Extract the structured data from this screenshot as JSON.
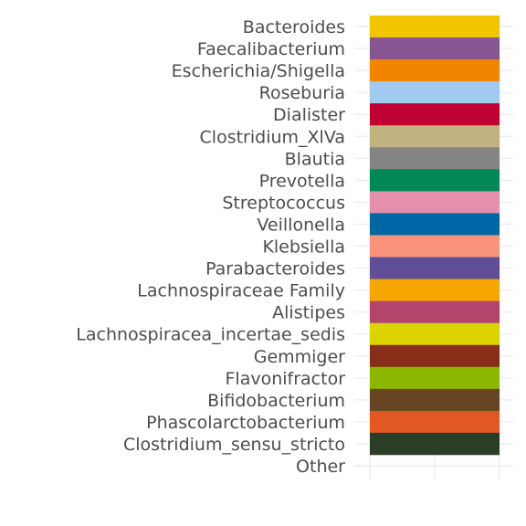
{
  "chart_data": {
    "type": "bar",
    "title": "",
    "xlabel": "",
    "ylabel": "",
    "grid": true,
    "categories": [
      "Bacteroides",
      "Faecalibacterium",
      "Escherichia/Shigella",
      "Roseburia",
      "Dialister",
      "Clostridium_XlVa",
      "Blautia",
      "Prevotella",
      "Streptococcus",
      "Veillonella",
      "Klebsiella",
      "Parabacteroides",
      "Lachnospiraceae Family",
      "Alistipes",
      "Lachnospiracea_incertae_sedis",
      "Gemmiger",
      "Flavonifractor",
      "Bifidobacterium",
      "Phascolarctobacterium",
      "Clostridium_sensu_stricto",
      "Other"
    ],
    "colors": [
      "#F2C500",
      "#875692",
      "#F38400",
      "#A1CAF1",
      "#BE0032",
      "#C2B280",
      "#848482",
      "#008856",
      "#E68FAC",
      "#0067A5",
      "#F99379",
      "#604E97",
      "#F6A600",
      "#B3446C",
      "#DCD300",
      "#882D17",
      "#8DB600",
      "#654522",
      "#E25822",
      "#2B3D26",
      null
    ],
    "values": [
      1,
      1,
      1,
      1,
      1,
      1,
      1,
      1,
      1,
      1,
      1,
      1,
      1,
      1,
      1,
      1,
      1,
      1,
      1,
      1,
      1
    ]
  }
}
